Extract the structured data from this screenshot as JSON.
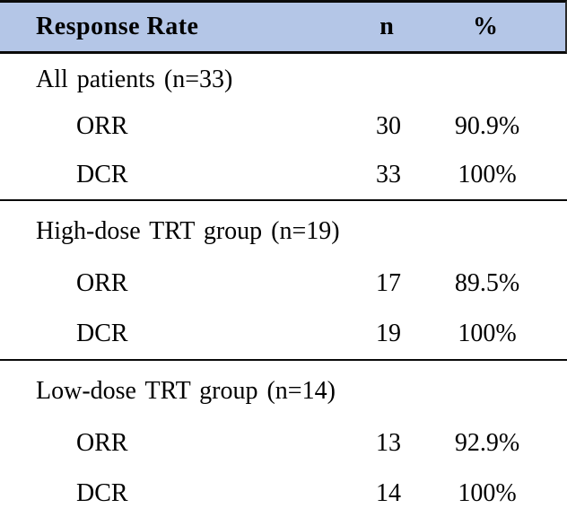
{
  "table": {
    "header": {
      "label": "Response Rate",
      "n": "n",
      "pct": "%"
    },
    "sections": [
      {
        "label": "All patients (n=33)",
        "rows": [
          {
            "name": "ORR",
            "n": "30",
            "pct": "90.9%"
          },
          {
            "name": "DCR",
            "n": "33",
            "pct": "100%"
          }
        ]
      },
      {
        "label": "High-dose TRT group (n=19)",
        "rows": [
          {
            "name": "ORR",
            "n": "17",
            "pct": "89.5%"
          },
          {
            "name": "DCR",
            "n": "19",
            "pct": "100%"
          }
        ]
      },
      {
        "label": "Low-dose TRT group (n=14)",
        "rows": [
          {
            "name": "ORR",
            "n": "13",
            "pct": "92.9%"
          },
          {
            "name": "DCR",
            "n": "14",
            "pct": "100%"
          }
        ]
      }
    ],
    "colors": {
      "header_bg": "#b4c6e7",
      "border": "#0a0a0a"
    }
  }
}
